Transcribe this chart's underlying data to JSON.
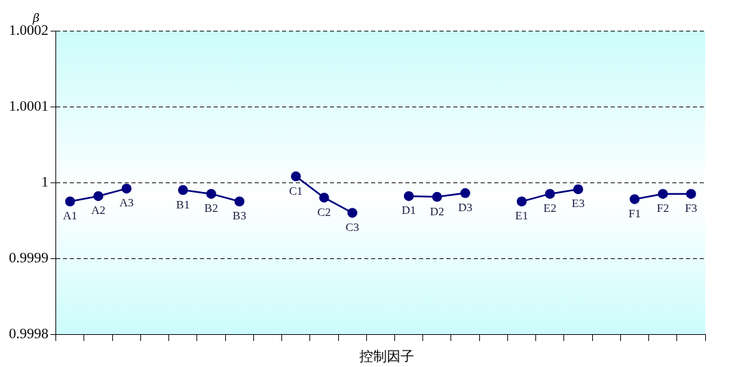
{
  "chart_data": {
    "type": "line",
    "ylabel": "β",
    "xlabel": "控制因子",
    "categories": [
      "A1",
      "A2",
      "A3",
      null,
      "B1",
      "B2",
      "B3",
      null,
      "C1",
      "C2",
      "C3",
      null,
      "D1",
      "D2",
      "D3",
      null,
      "E1",
      "E2",
      "E3",
      null,
      "F1",
      "F2",
      "F3"
    ],
    "series": [
      {
        "color": "#000080",
        "values": [
          0.999975,
          0.999982,
          0.999992,
          null,
          0.99999,
          0.999985,
          0.999975,
          null,
          1.000008,
          0.99998,
          0.99996,
          null,
          0.999982,
          0.999981,
          0.999986,
          null,
          0.999975,
          0.999985,
          0.999991,
          null,
          0.999978,
          0.999985,
          0.999985
        ]
      }
    ],
    "ylim": [
      0.9998,
      1.0002
    ],
    "yticks": [
      0.9998,
      0.9999,
      1,
      1.0001,
      1.0002
    ],
    "grid": "y",
    "legend": false,
    "marker": "circle",
    "line_style": "solid"
  }
}
